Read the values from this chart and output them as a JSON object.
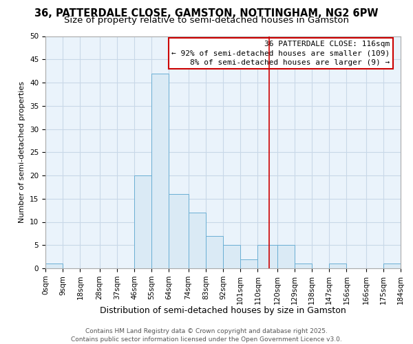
{
  "title": "36, PATTERDALE CLOSE, GAMSTON, NOTTINGHAM, NG2 6PW",
  "subtitle": "Size of property relative to semi-detached houses in Gamston",
  "xlabel": "Distribution of semi-detached houses by size in Gamston",
  "ylabel": "Number of semi-detached properties",
  "bin_edges": [
    0,
    9,
    18,
    28,
    37,
    46,
    55,
    64,
    74,
    83,
    92,
    101,
    110,
    120,
    129,
    138,
    147,
    156,
    166,
    175,
    184
  ],
  "bin_counts": [
    1,
    0,
    0,
    0,
    0,
    20,
    42,
    16,
    12,
    7,
    5,
    2,
    5,
    5,
    1,
    0,
    1,
    0,
    0,
    1
  ],
  "bar_facecolor": "#daeaf5",
  "bar_edgecolor": "#6aafd4",
  "grid_color": "#c8d8e8",
  "plot_bg_color": "#eaf3fb",
  "fig_bg_color": "#ffffff",
  "property_line_x": 116,
  "property_line_color": "#cc0000",
  "annotation_text": "36 PATTERDALE CLOSE: 116sqm\n← 92% of semi-detached houses are smaller (109)\n8% of semi-detached houses are larger (9) →",
  "ylim": [
    0,
    50
  ],
  "yticks": [
    0,
    5,
    10,
    15,
    20,
    25,
    30,
    35,
    40,
    45,
    50
  ],
  "footer_text": "Contains HM Land Registry data © Crown copyright and database right 2025.\nContains public sector information licensed under the Open Government Licence v3.0.",
  "title_fontsize": 10.5,
  "subtitle_fontsize": 9.5,
  "xlabel_fontsize": 9,
  "ylabel_fontsize": 8,
  "tick_fontsize": 7.5,
  "annotation_fontsize": 8,
  "footer_fontsize": 6.5
}
